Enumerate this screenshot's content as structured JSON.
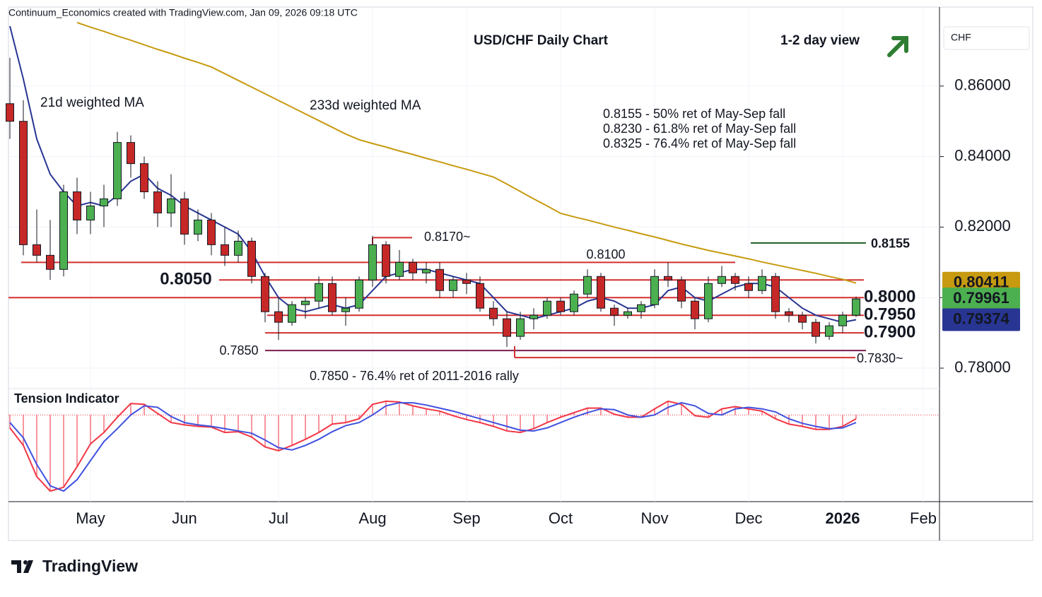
{
  "header": "Continuum_Economics created with TradingView.com, Jan 09, 2026 09:18 UTC",
  "branding": "TradingView",
  "chart_data": {
    "type": "candlestick",
    "title": "USD/CHF Daily Chart",
    "subtitle": "1-2 day view",
    "currency": "CHF",
    "ylim": [
      0.7746,
      0.8824
    ],
    "yticks": [
      {
        "value": 0.86,
        "label": "0.86000"
      },
      {
        "value": 0.84,
        "label": "0.84000"
      },
      {
        "value": 0.82,
        "label": "0.82000"
      },
      {
        "value": 0.8,
        "label": "0.80000"
      },
      {
        "value": 0.78,
        "label": "0.78000"
      }
    ],
    "grid": true,
    "up_color": "#4caf50",
    "down_color": "#c62828",
    "categories": [
      null,
      null,
      null,
      null,
      null,
      null,
      "May",
      null,
      null,
      null,
      null,
      null,
      null,
      "Jun",
      null,
      null,
      null,
      null,
      null,
      null,
      "Jul",
      null,
      null,
      null,
      null,
      null,
      null,
      "Aug",
      null,
      null,
      null,
      null,
      null,
      null,
      "Sep",
      null,
      null,
      null,
      null,
      null,
      null,
      "Oct",
      null,
      null,
      null,
      null,
      null,
      null,
      "Nov",
      null,
      null,
      null,
      null,
      null,
      null,
      "Dec",
      null,
      null,
      null,
      null,
      null,
      null,
      "2026",
      null,
      null,
      null,
      null,
      null,
      "Feb"
    ],
    "open": [
      0.855,
      0.85,
      0.815,
      0.812,
      0.808,
      0.83,
      0.822,
      0.826,
      0.828,
      0.844,
      0.838,
      0.83,
      0.824,
      0.828,
      0.818,
      0.822,
      0.815,
      0.812,
      0.816,
      0.806,
      0.796,
      0.793,
      0.798,
      0.799,
      0.804,
      0.796,
      0.797,
      0.805,
      0.815,
      0.806,
      0.81,
      0.807,
      0.808,
      0.802,
      0.805,
      0.804,
      0.797,
      0.794,
      0.789,
      0.794,
      0.795,
      0.799,
      0.796,
      0.801,
      0.806,
      0.797,
      0.795,
      0.796,
      0.798,
      0.806,
      0.805,
      0.799,
      0.794,
      0.804,
      0.806,
      0.804,
      0.802,
      0.806,
      0.796,
      0.795,
      0.793,
      0.789,
      0.792,
      0.795,
      null,
      null,
      null,
      null,
      null
    ],
    "high": [
      0.868,
      0.856,
      0.825,
      0.822,
      0.832,
      0.834,
      0.83,
      0.832,
      0.847,
      0.846,
      0.84,
      0.833,
      0.835,
      0.83,
      0.825,
      0.824,
      0.82,
      0.819,
      0.817,
      0.807,
      0.8,
      0.799,
      0.8,
      0.806,
      0.806,
      0.8,
      0.806,
      0.8175,
      0.816,
      0.8135,
      0.811,
      0.81,
      0.81,
      0.806,
      0.807,
      0.806,
      0.799,
      0.796,
      0.796,
      0.797,
      0.8,
      0.8,
      0.802,
      0.808,
      0.807,
      0.798,
      0.797,
      0.799,
      0.808,
      0.81,
      0.806,
      0.8,
      0.806,
      0.809,
      0.807,
      0.806,
      0.808,
      0.807,
      0.797,
      0.796,
      0.794,
      0.793,
      0.796,
      0.8003,
      null,
      null,
      null,
      null,
      null
    ],
    "low": [
      0.845,
      0.812,
      0.81,
      0.805,
      0.806,
      0.818,
      0.818,
      0.82,
      0.826,
      0.834,
      0.828,
      0.82,
      0.82,
      0.815,
      0.816,
      0.812,
      0.809,
      0.81,
      0.804,
      0.793,
      0.788,
      0.792,
      0.794,
      0.797,
      0.795,
      0.792,
      0.796,
      0.803,
      0.804,
      0.805,
      0.805,
      0.804,
      0.8,
      0.8,
      0.801,
      0.796,
      0.792,
      0.786,
      0.788,
      0.791,
      0.794,
      0.795,
      0.795,
      0.8,
      0.796,
      0.792,
      0.794,
      0.794,
      0.797,
      0.803,
      0.797,
      0.791,
      0.793,
      0.803,
      0.802,
      0.8,
      0.801,
      0.794,
      0.793,
      0.791,
      0.787,
      0.788,
      0.79,
      0.7945,
      null,
      null,
      null,
      null,
      null
    ],
    "close": [
      0.85,
      0.815,
      0.812,
      0.808,
      0.83,
      0.822,
      0.826,
      0.828,
      0.844,
      0.838,
      0.83,
      0.824,
      0.828,
      0.818,
      0.822,
      0.815,
      0.812,
      0.816,
      0.806,
      0.796,
      0.793,
      0.798,
      0.799,
      0.804,
      0.796,
      0.797,
      0.805,
      0.815,
      0.806,
      0.81,
      0.807,
      0.808,
      0.802,
      0.805,
      0.804,
      0.797,
      0.794,
      0.789,
      0.794,
      0.795,
      0.799,
      0.796,
      0.801,
      0.806,
      0.797,
      0.795,
      0.796,
      0.798,
      0.806,
      0.805,
      0.799,
      0.794,
      0.804,
      0.806,
      0.804,
      0.802,
      0.806,
      0.796,
      0.795,
      0.793,
      0.789,
      0.792,
      0.795,
      0.79961,
      null,
      null,
      null,
      null,
      null
    ],
    "moving_averages": [
      {
        "name": "21d weighted MA",
        "color": "#283593",
        "values": [
          0.877,
          0.862,
          0.845,
          0.835,
          0.83,
          0.826,
          0.827,
          0.826,
          0.829,
          0.833,
          0.835,
          0.831,
          0.829,
          0.826,
          0.824,
          0.822,
          0.82,
          0.818,
          0.813,
          0.806,
          0.8,
          0.797,
          0.796,
          0.797,
          0.798,
          0.797,
          0.798,
          0.802,
          0.806,
          0.807,
          0.808,
          0.808,
          0.807,
          0.806,
          0.805,
          0.804,
          0.8,
          0.796,
          0.795,
          0.794,
          0.795,
          0.796,
          0.797,
          0.799,
          0.8,
          0.799,
          0.797,
          0.797,
          0.798,
          0.802,
          0.803,
          0.8,
          0.799,
          0.801,
          0.803,
          0.804,
          0.804,
          0.803,
          0.8,
          0.797,
          0.795,
          0.794,
          0.793,
          0.79374,
          null,
          null,
          null,
          null,
          null
        ]
      },
      {
        "name": "233d weighted MA",
        "color": "#c79a0f",
        "values": [
          null,
          null,
          null,
          null,
          null,
          0.878,
          0.8767,
          0.8755,
          0.8742,
          0.873,
          0.8717,
          0.8704,
          0.8692,
          0.8679,
          0.8667,
          0.8654,
          0.8635,
          0.8616,
          0.8597,
          0.8578,
          0.8559,
          0.854,
          0.8521,
          0.8502,
          0.8483,
          0.8464,
          0.8448,
          0.8437,
          0.8427,
          0.8416,
          0.8406,
          0.8395,
          0.8385,
          0.8374,
          0.8364,
          0.8353,
          0.8342,
          0.8322,
          0.8301,
          0.828,
          0.826,
          0.8239,
          0.8229,
          0.822,
          0.821,
          0.82,
          0.8191,
          0.8181,
          0.8172,
          0.8162,
          0.8152,
          0.8143,
          0.8134,
          0.8126,
          0.8118,
          0.811,
          0.8101,
          0.8093,
          0.8085,
          0.8077,
          0.8069,
          0.806,
          0.8052,
          0.80411,
          null,
          null,
          null,
          null,
          null
        ]
      }
    ],
    "last_values": [
      {
        "value": 0.80411,
        "color": "#c79a0f",
        "text_color": "#131722"
      },
      {
        "value": 0.79961,
        "color": "#4caf50",
        "text_color": "#ffffff"
      },
      {
        "value": 0.79374,
        "color": "#283593",
        "text_color": "#ffffff"
      }
    ],
    "levels": [
      {
        "value": 0.817,
        "label": "0.8170~",
        "color": "#d32f2f"
      },
      {
        "value": 0.8155,
        "label": "0.8155",
        "color": "#1b5e20"
      },
      {
        "value": 0.81,
        "label": "0.8100",
        "color": "#d32f2f"
      },
      {
        "value": 0.805,
        "label": "0.8050",
        "color": "#d32f2f"
      },
      {
        "value": 0.8,
        "label": "0.8000",
        "color": "#d32f2f"
      },
      {
        "value": 0.795,
        "label": "0.7950",
        "color": "#d32f2f"
      },
      {
        "value": 0.79,
        "label": "0.7900",
        "color": "#d32f2f"
      },
      {
        "value": 0.785,
        "label": "0.7850",
        "color": "#7b1f4f"
      },
      {
        "value": 0.783,
        "label": "0.7830~",
        "color": "#d32f2f"
      }
    ],
    "notes": [
      "0.8155 - 50% ret of May-Sep fall",
      "0.8230 - 61.8% ret of May-Sep fall",
      "0.8325 - 76.4% ret of May-Sep fall"
    ],
    "notes_color": "#1b5e20",
    "support_note": "0.7850 - 76.4% ret of 2011-2016 rally",
    "support_note_color": "#7b1f4f",
    "tension": {
      "title": "Tension Indicator",
      "ylim": [
        -1.12,
        0.3
      ],
      "series": [
        {
          "color": "#f23645",
          "values": [
            -0.17,
            -0.4,
            -0.81,
            -1.0,
            -0.95,
            -0.68,
            -0.38,
            -0.23,
            -0.03,
            0.15,
            0.14,
            0.02,
            -0.1,
            -0.13,
            -0.15,
            -0.16,
            -0.23,
            -0.22,
            -0.29,
            -0.42,
            -0.47,
            -0.4,
            -0.32,
            -0.23,
            -0.12,
            -0.1,
            -0.05,
            0.14,
            0.18,
            0.17,
            0.12,
            0.08,
            0.05,
            -0.01,
            -0.06,
            -0.1,
            -0.15,
            -0.21,
            -0.23,
            -0.18,
            -0.1,
            -0.03,
            0.03,
            0.09,
            0.09,
            0.01,
            -0.03,
            -0.03,
            0.08,
            0.18,
            0.14,
            -0.01,
            -0.03,
            0.08,
            0.11,
            0.08,
            0.05,
            -0.05,
            -0.12,
            -0.15,
            -0.19,
            -0.19,
            -0.15,
            -0.05,
            null,
            null,
            null,
            null,
            null
          ]
        },
        {
          "color": "#3f51e0",
          "values": [
            -0.1,
            -0.3,
            -0.65,
            -0.93,
            -1.0,
            -0.85,
            -0.6,
            -0.35,
            -0.18,
            0,
            0.12,
            0.1,
            -0.02,
            -0.1,
            -0.13,
            -0.15,
            -0.18,
            -0.21,
            -0.24,
            -0.33,
            -0.43,
            -0.46,
            -0.4,
            -0.32,
            -0.22,
            -0.14,
            -0.1,
            0,
            0.12,
            0.16,
            0.16,
            0.13,
            0.09,
            0.05,
            0,
            -0.05,
            -0.1,
            -0.15,
            -0.2,
            -0.21,
            -0.17,
            -0.1,
            -0.03,
            0.03,
            0.08,
            0.07,
            0,
            -0.03,
            0,
            0.1,
            0.16,
            0.12,
            0.02,
            0,
            0.08,
            0.1,
            0.08,
            0.04,
            -0.05,
            -0.11,
            -0.15,
            -0.18,
            -0.17,
            -0.1,
            null,
            null,
            null,
            null,
            null
          ]
        }
      ]
    }
  }
}
